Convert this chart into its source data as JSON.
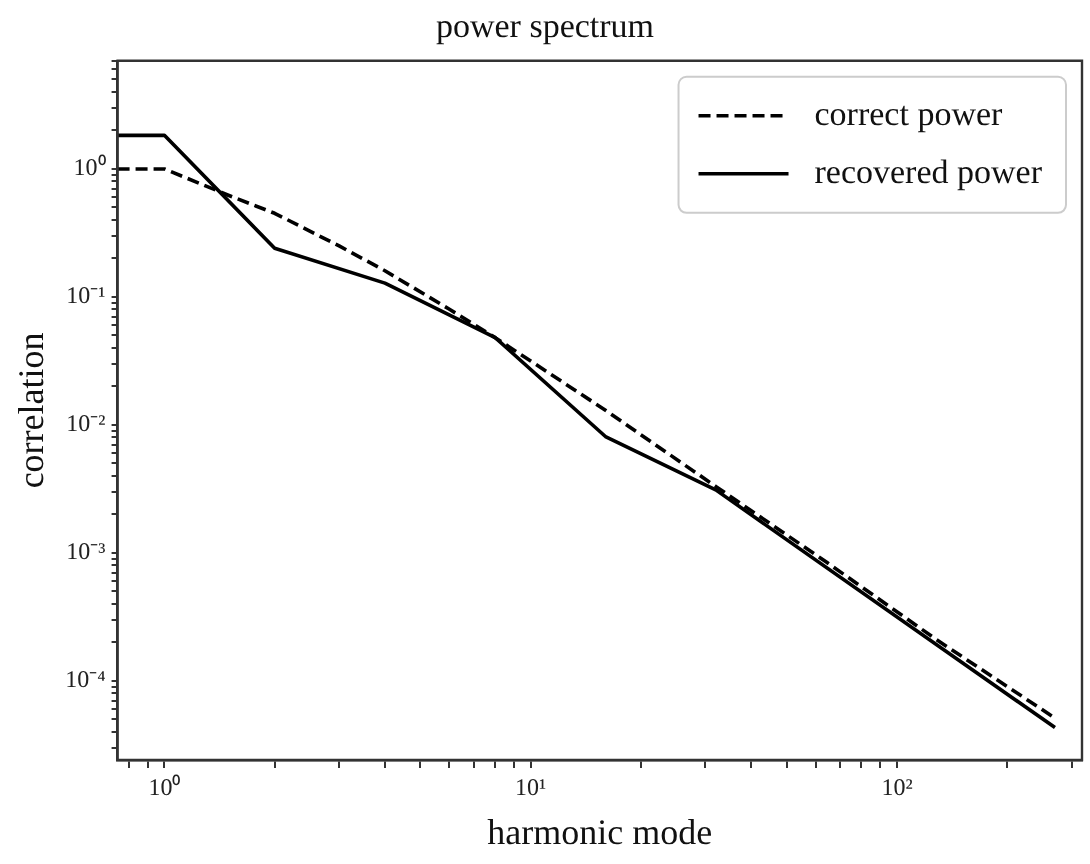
{
  "chart_data": {
    "type": "line",
    "title": "power spectrum",
    "xlabel": "harmonic mode",
    "ylabel": "correlation",
    "log": "xy",
    "grid": false,
    "legend": "top right",
    "marker": "none",
    "xlim": [
      0.745,
      320
    ],
    "ylim": [
      2.4e-05,
      7
    ],
    "xticks": [
      {
        "value": 0.8,
        "label": null
      },
      {
        "value": 0.9,
        "label": null
      },
      {
        "value": 1,
        "label": "10⁰"
      },
      {
        "value": 2,
        "label": null
      },
      {
        "value": 3,
        "label": null
      },
      {
        "value": 4,
        "label": null
      },
      {
        "value": 5,
        "label": null
      },
      {
        "value": 6,
        "label": null
      },
      {
        "value": 7,
        "label": null
      },
      {
        "value": 8,
        "label": null
      },
      {
        "value": 9,
        "label": null
      },
      {
        "value": 10,
        "label": "10¹"
      },
      {
        "value": 20,
        "label": null
      },
      {
        "value": 30,
        "label": null
      },
      {
        "value": 40,
        "label": null
      },
      {
        "value": 50,
        "label": null
      },
      {
        "value": 60,
        "label": null
      },
      {
        "value": 70,
        "label": null
      },
      {
        "value": 80,
        "label": null
      },
      {
        "value": 90,
        "label": null
      },
      {
        "value": 100,
        "label": "10²"
      },
      {
        "value": 200,
        "label": null
      },
      {
        "value": 300,
        "label": null
      }
    ],
    "yticks": [
      {
        "value": 3e-05,
        "label": null
      },
      {
        "value": 4e-05,
        "label": null
      },
      {
        "value": 5e-05,
        "label": null
      },
      {
        "value": 6e-05,
        "label": null
      },
      {
        "value": 7e-05,
        "label": null
      },
      {
        "value": 8e-05,
        "label": null
      },
      {
        "value": 9e-05,
        "label": null
      },
      {
        "value": 0.0001,
        "label": "10⁻⁴"
      },
      {
        "value": 0.0002,
        "label": null
      },
      {
        "value": 0.0003,
        "label": null
      },
      {
        "value": 0.0004,
        "label": null
      },
      {
        "value": 0.0005,
        "label": null
      },
      {
        "value": 0.0006,
        "label": null
      },
      {
        "value": 0.0007,
        "label": null
      },
      {
        "value": 0.0008,
        "label": null
      },
      {
        "value": 0.0009,
        "label": null
      },
      {
        "value": 0.001,
        "label": "10⁻³"
      },
      {
        "value": 0.002,
        "label": null
      },
      {
        "value": 0.003,
        "label": null
      },
      {
        "value": 0.004,
        "label": null
      },
      {
        "value": 0.005,
        "label": null
      },
      {
        "value": 0.006,
        "label": null
      },
      {
        "value": 0.007,
        "label": null
      },
      {
        "value": 0.008,
        "label": null
      },
      {
        "value": 0.009,
        "label": null
      },
      {
        "value": 0.01,
        "label": "10⁻²"
      },
      {
        "value": 0.02,
        "label": null
      },
      {
        "value": 0.03,
        "label": null
      },
      {
        "value": 0.04,
        "label": null
      },
      {
        "value": 0.05,
        "label": null
      },
      {
        "value": 0.06,
        "label": null
      },
      {
        "value": 0.07,
        "label": null
      },
      {
        "value": 0.08,
        "label": null
      },
      {
        "value": 0.09,
        "label": null
      },
      {
        "value": 0.1,
        "label": "10⁻¹"
      },
      {
        "value": 0.2,
        "label": null
      },
      {
        "value": 0.3,
        "label": null
      },
      {
        "value": 0.4,
        "label": null
      },
      {
        "value": 0.5,
        "label": null
      },
      {
        "value": 0.6,
        "label": null
      },
      {
        "value": 0.7,
        "label": null
      },
      {
        "value": 0.8,
        "label": null
      },
      {
        "value": 0.9,
        "label": null
      },
      {
        "value": 1,
        "label": "10⁰"
      },
      {
        "value": 2,
        "label": null
      },
      {
        "value": 3,
        "label": null
      },
      {
        "value": 4,
        "label": null
      },
      {
        "value": 5,
        "label": null
      },
      {
        "value": 6,
        "label": null
      },
      {
        "value": 7,
        "label": null
      }
    ],
    "series": [
      {
        "name": "correct power",
        "color": "#000000",
        "line_style": "dashed",
        "x": [
          0.745,
          1,
          1.5,
          2,
          3,
          4,
          6,
          8,
          16,
          32,
          64,
          128,
          270
        ],
        "values": [
          1.0,
          1.0,
          0.62,
          0.45,
          0.25,
          0.16,
          0.08,
          0.048,
          0.013,
          0.0033,
          0.00085,
          0.00021,
          5.1e-05
        ]
      },
      {
        "name": "recovered power",
        "color": "#000000",
        "line_style": "solid",
        "x": [
          0.745,
          1,
          2,
          4,
          8,
          16,
          32,
          270
        ],
        "values": [
          1.83,
          1.83,
          0.24,
          0.128,
          0.048,
          0.0081,
          0.0031,
          4.3e-05
        ]
      }
    ]
  }
}
